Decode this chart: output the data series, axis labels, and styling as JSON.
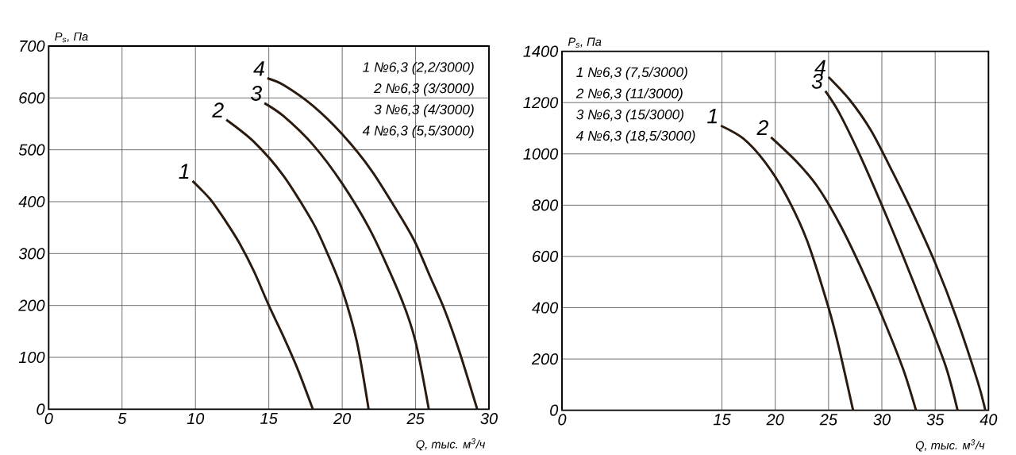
{
  "chart_data": [
    {
      "type": "line",
      "xlabel": "Q, тыс. м$^{3}$/ч",
      "ylabel": "P$_{s}$, Па",
      "xlim": [
        0,
        30
      ],
      "ylim": [
        0,
        700
      ],
      "xticks": [
        0,
        5,
        10,
        15,
        20,
        25,
        30
      ],
      "yticks": [
        0,
        100,
        200,
        300,
        400,
        500,
        600,
        700
      ],
      "grid": true,
      "line_style": "solid",
      "marker": "none",
      "series": [
        {
          "color": "#2b1a0e",
          "x": [
            9.8,
            11,
            12,
            13,
            14,
            15,
            16,
            17,
            18
          ],
          "values": [
            440,
            405,
            365,
            320,
            265,
            200,
            140,
            75,
            0
          ]
        },
        {
          "color": "#2b1a0e",
          "x": [
            12.1,
            14,
            16,
            18,
            19,
            20,
            21,
            21.8
          ],
          "values": [
            558,
            515,
            450,
            360,
            300,
            230,
            130,
            0
          ]
        },
        {
          "color": "#2b1a0e",
          "x": [
            14.7,
            16,
            18,
            20,
            22,
            24,
            25,
            25.9
          ],
          "values": [
            590,
            565,
            510,
            435,
            340,
            215,
            130,
            0
          ]
        },
        {
          "color": "#2b1a0e",
          "x": [
            14.9,
            16,
            18,
            20,
            22,
            24,
            25,
            26,
            27,
            28,
            29.2
          ],
          "values": [
            638,
            625,
            585,
            530,
            460,
            370,
            320,
            255,
            190,
            110,
            0
          ]
        }
      ],
      "annotations": [
        {
          "text": "1",
          "x": 9.8,
          "y": 440
        },
        {
          "text": "2",
          "x": 12.1,
          "y": 558
        },
        {
          "text": "3",
          "x": 14.7,
          "y": 590
        },
        {
          "text": "4",
          "x": 14.9,
          "y": 638
        },
        "1 №6,3 (2,2/3000)",
        "2 №6,3 (3/3000)",
        "3 №6,3 (4/3000)",
        "4 №6,3 (5,5/3000)"
      ]
    },
    {
      "type": "line",
      "xlabel": "Q, тыс. м$^{3}$/ч",
      "ylabel": "P$_{s}$, Па",
      "xlim": [
        0,
        40
      ],
      "ylim": [
        0,
        1400
      ],
      "xticks": [
        0,
        15,
        20,
        25,
        30,
        35,
        40
      ],
      "yticks": [
        0,
        200,
        400,
        600,
        800,
        1000,
        1200,
        1400
      ],
      "grid": true,
      "line_style": "solid",
      "marker": "none",
      "series": [
        {
          "color": "#2b1a0e",
          "x": [
            14.9,
            17,
            19,
            21,
            23,
            25,
            26,
            27.3
          ],
          "values": [
            1110,
            1060,
            970,
            840,
            660,
            400,
            240,
            0
          ]
        },
        {
          "color": "#2b1a0e",
          "x": [
            19.6,
            22,
            24,
            26,
            28,
            30,
            32,
            33.2
          ],
          "values": [
            1065,
            970,
            870,
            730,
            560,
            370,
            160,
            0
          ]
        },
        {
          "color": "#2b1a0e",
          "x": [
            24.7,
            26,
            28,
            30,
            32,
            34,
            36,
            37.1
          ],
          "values": [
            1245,
            1160,
            990,
            800,
            600,
            390,
            170,
            0
          ]
        },
        {
          "color": "#2b1a0e",
          "x": [
            25,
            27,
            29,
            31,
            33,
            35,
            37,
            39,
            39.7
          ],
          "values": [
            1300,
            1210,
            1090,
            930,
            760,
            575,
            360,
            110,
            0
          ]
        }
      ],
      "annotations": [
        {
          "text": "1",
          "x": 14.9,
          "y": 1110
        },
        {
          "text": "2",
          "x": 19.6,
          "y": 1065
        },
        {
          "text": "3",
          "x": 24.7,
          "y": 1245
        },
        {
          "text": "4",
          "x": 25,
          "y": 1300
        },
        "1 №6,3 (7,5/3000)",
        "2 №6,3 (11/3000)",
        "3 №6,3 (15/3000)",
        "4 №6,3 (18,5/3000)"
      ]
    }
  ]
}
